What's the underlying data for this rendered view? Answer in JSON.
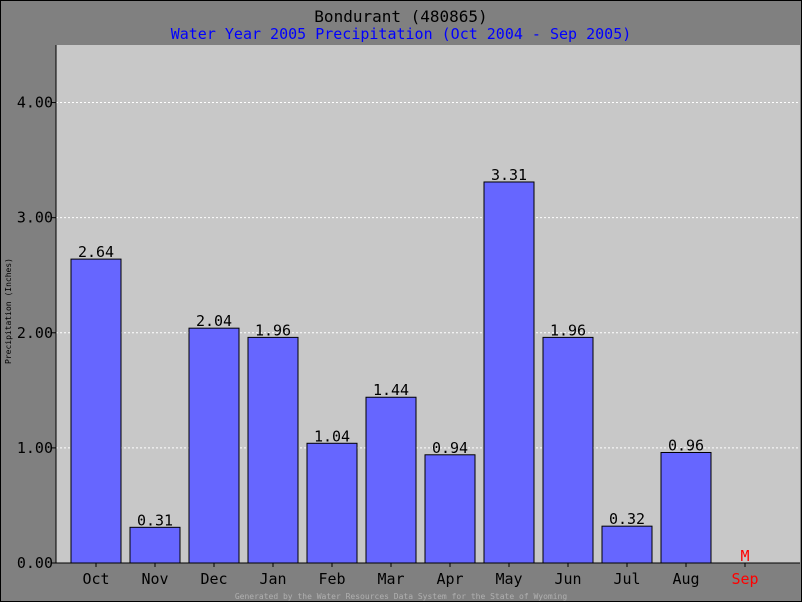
{
  "chart_data": {
    "type": "bar",
    "title": "Bondurant (480865)",
    "subtitle": "Water Year 2005 Precipitation (Oct 2004 - Sep 2005)",
    "ylabel": "Precipitation (Inches)",
    "xlabel": "",
    "categories": [
      "Oct",
      "Nov",
      "Dec",
      "Jan",
      "Feb",
      "Mar",
      "Apr",
      "May",
      "Jun",
      "Jul",
      "Aug",
      "Sep"
    ],
    "values": [
      2.64,
      0.31,
      2.04,
      1.96,
      1.04,
      1.44,
      0.94,
      3.31,
      1.96,
      0.32,
      0.96,
      null
    ],
    "data_labels": [
      "2.64",
      "0.31",
      "2.04",
      "1.96",
      "1.04",
      "1.44",
      "0.94",
      "3.31",
      "1.96",
      "0.32",
      "0.96",
      "M"
    ],
    "missing_categories": [
      "Sep"
    ],
    "ylim": [
      0,
      4.5
    ],
    "yticks": [
      0,
      1,
      2,
      3,
      4
    ],
    "ytick_labels": [
      "0.00",
      "1.00",
      "2.00",
      "3.00",
      "4.00"
    ],
    "grid": true,
    "legend": "none",
    "footer": "Generated by the Water Resources Data System for the State of Wyoming"
  },
  "colors": {
    "background": "#808080",
    "plot_area": "#c8c8c8",
    "bar_fill": "#6666ff",
    "title": "#000000",
    "subtitle": "#0000ff",
    "missing": "#ff0000",
    "gridline": "#ffffff",
    "footer": "#b0b0b0"
  }
}
